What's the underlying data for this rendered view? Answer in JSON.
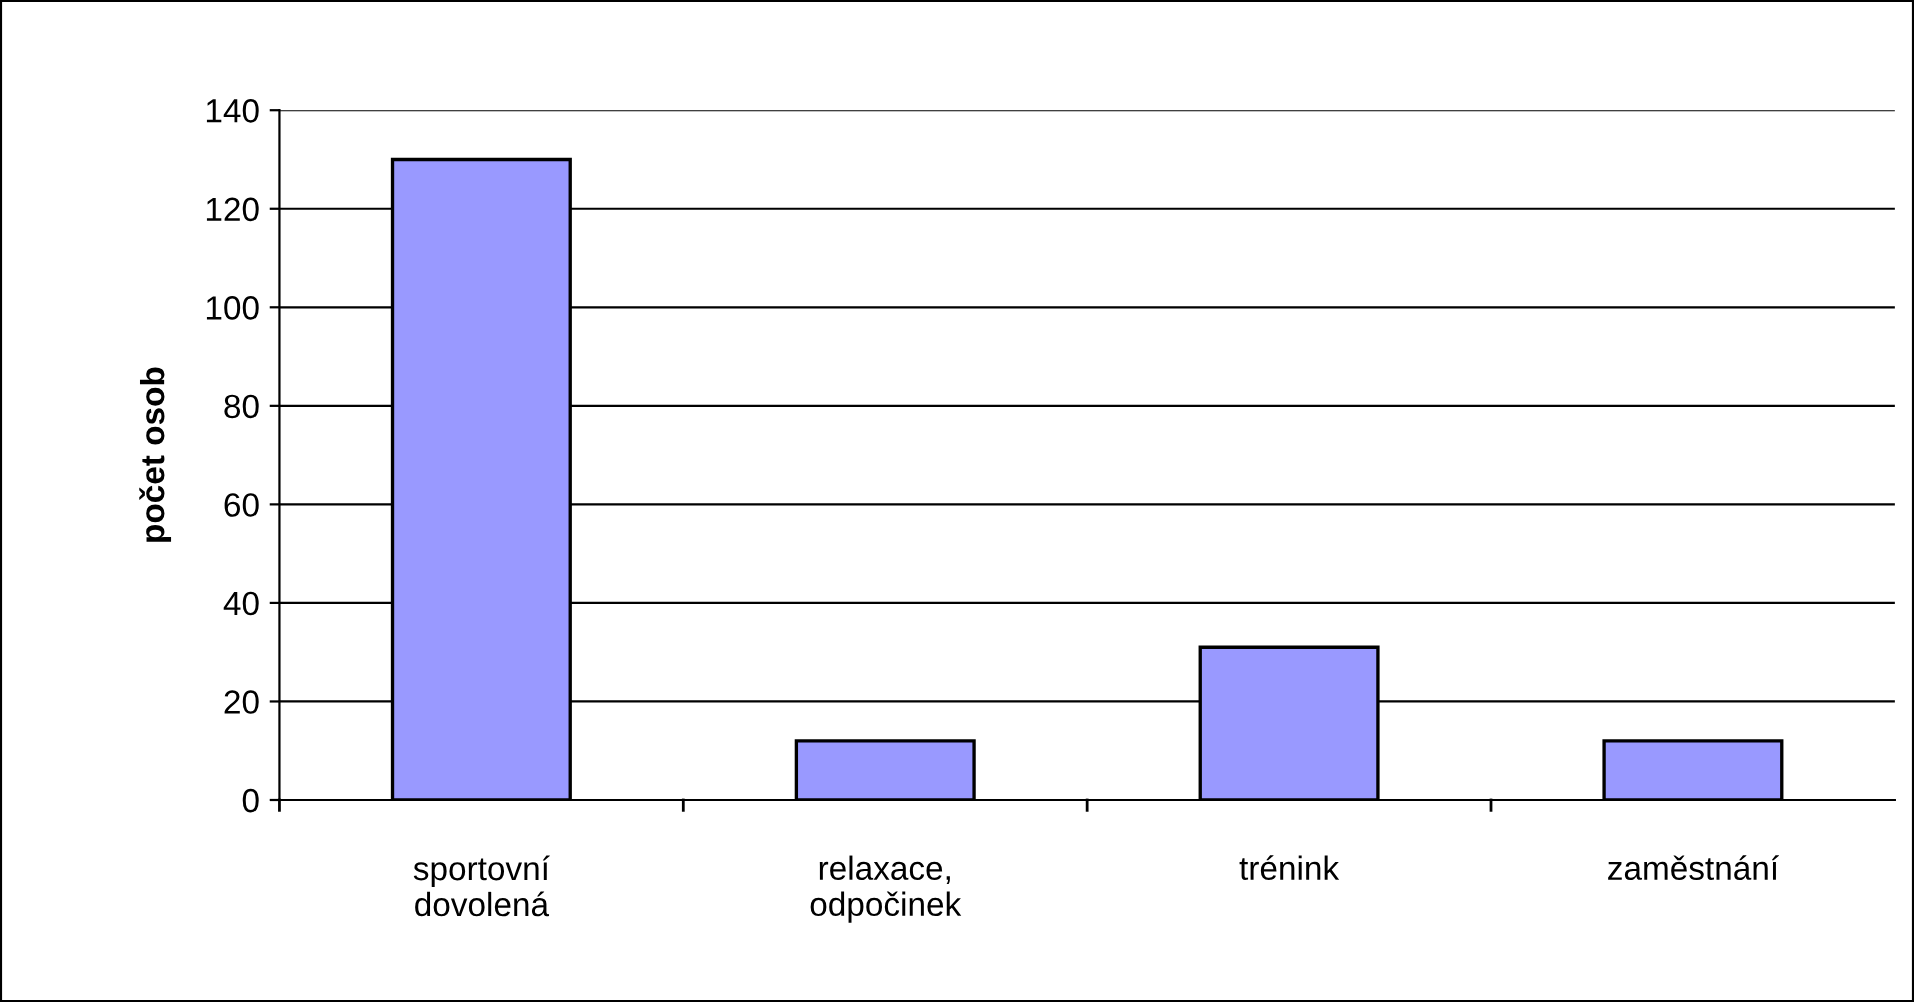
{
  "chart_data": {
    "type": "bar",
    "ylabel": "počet osob",
    "categories": [
      "sportovní\ndovolená",
      "relaxace,\nodpočinek",
      "trénink",
      "zaměstnání"
    ],
    "values": [
      130,
      12,
      31,
      12
    ],
    "color": "#9999ff",
    "ylim": [
      0,
      140
    ],
    "yticks": [
      0,
      20,
      40,
      60,
      80,
      100,
      120,
      140
    ],
    "grid": "y"
  }
}
